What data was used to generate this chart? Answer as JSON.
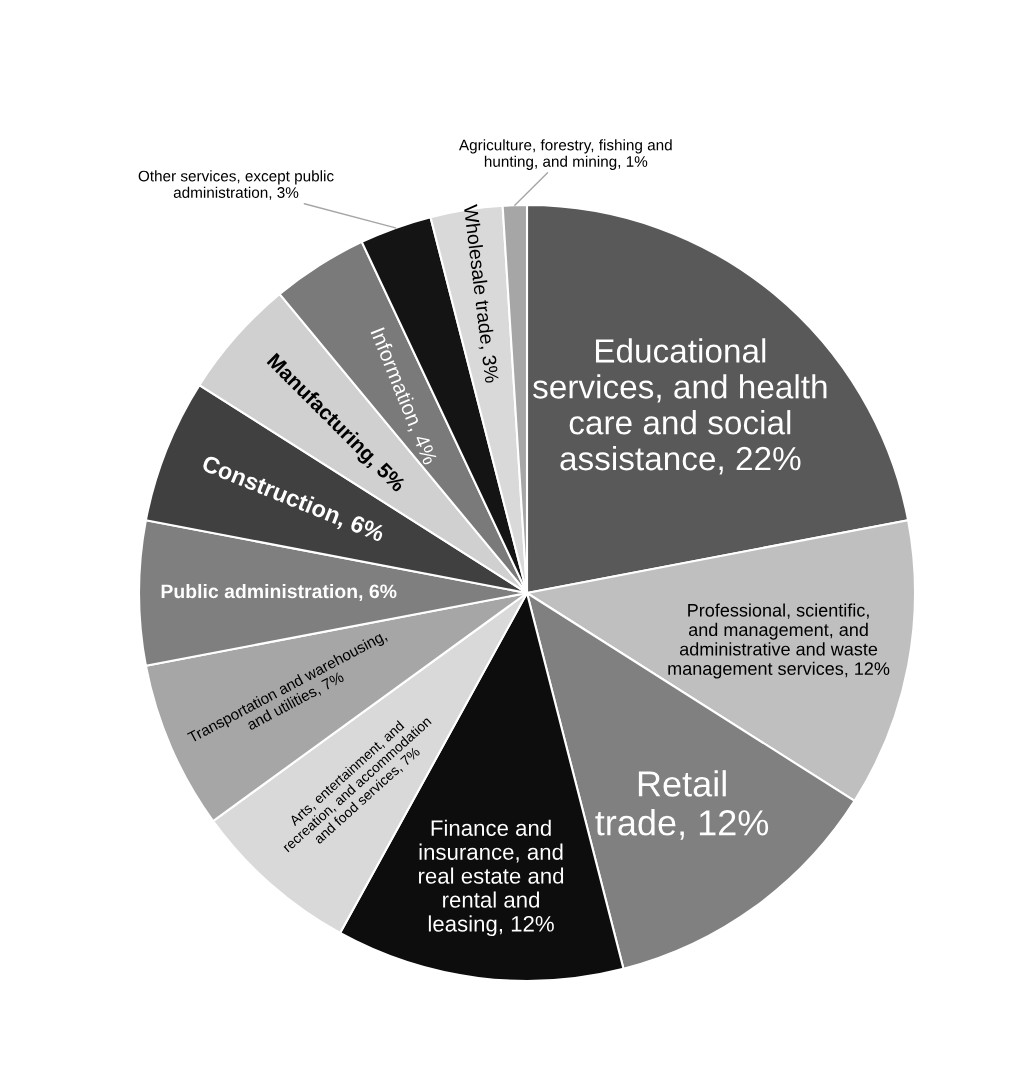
{
  "chart_data": {
    "type": "pie",
    "categories": [
      "Educational services, and health care and social assistance, 22%",
      "Professional, scientific, and management, and administrative and waste management services, 12%",
      "Retail trade, 12%",
      "Finance and insurance, and real estate and rental and leasing, 12%",
      "Arts, entertainment, and recreation, and accommodation and food services, 7%",
      "Transportation and warehousing, and utilities, 7%",
      "Public administration, 6%",
      "Construction, 6%",
      "Manufacturing, 5%",
      "Information, 4%",
      "Other services, except public administration, 3%",
      "Wholesale trade, 3%",
      "Agriculture, forestry, fishing and hunting, and mining, 1%"
    ],
    "values": [
      22,
      12,
      12,
      12,
      7,
      7,
      6,
      6,
      5,
      4,
      3,
      3,
      1
    ],
    "colors": [
      "#595959",
      "#bfbfbf",
      "#808080",
      "#0d0d0d",
      "#d9d9d9",
      "#a6a6a6",
      "#7f7f7f",
      "#404040",
      "#d0d0d0",
      "#7a7a7a",
      "#141414",
      "#d9d9d9",
      "#a6a6a6"
    ]
  }
}
